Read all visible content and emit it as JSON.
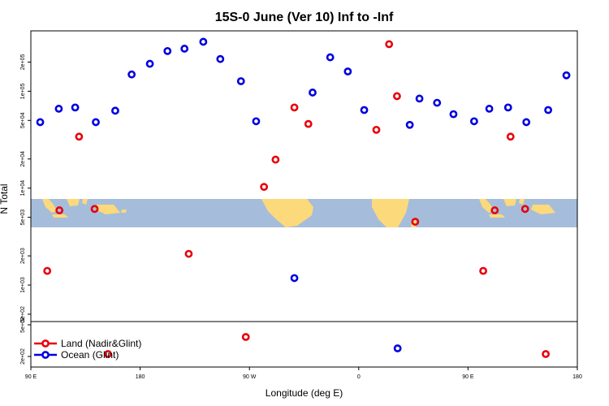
{
  "chart_data": {
    "type": "scatter",
    "title": "15S-0 June (Ver 10)   Inf to -Inf",
    "xlabel": "Longitude (deg E)",
    "ylabel": "N Total",
    "x_tick_labels": [
      "90 E",
      "180",
      "90 W",
      "0",
      "90 E",
      "180"
    ],
    "x_tick_values": [
      90,
      180,
      270,
      360,
      450,
      540
    ],
    "xlim": [
      90,
      540
    ],
    "y_tick_labels": [
      "2e+05",
      "1e+05",
      "5e+04",
      "2e+04",
      "1e+04",
      "5e+03",
      "2e+03",
      "1e+03",
      "5e+02"
    ],
    "y_tick_values": [
      200000,
      100000,
      50000,
      20000,
      10000,
      5000,
      2000,
      1000,
      500
    ],
    "ylim": [
      420,
      420000
    ],
    "y_scale": "log",
    "inset_y_tick_labels": [
      "5e+02",
      "2e+02"
    ],
    "map_band_latitude": "15S-0",
    "legend": {
      "placement": "bottom-left",
      "entries": [
        {
          "label": "Land (Nadir&Glint)",
          "color": "#e8000b"
        },
        {
          "label": "Ocean (Glint)",
          "color": "#0000e0"
        }
      ]
    },
    "series": [
      {
        "name": "Land (Nadir&Glint)",
        "color": "#e8000b",
        "points": [
          {
            "x": 103.5,
            "y": 1400
          },
          {
            "x": 113.5,
            "y": 5900
          },
          {
            "x": 129.7,
            "y": 34000
          },
          {
            "x": 142.5,
            "y": 6100
          },
          {
            "x": 153.5,
            "panel": "low"
          },
          {
            "x": 220.0,
            "y": 2100
          },
          {
            "x": 267.0,
            "panel": "low"
          },
          {
            "x": 282.0,
            "y": 10300
          },
          {
            "x": 291.5,
            "y": 19700
          },
          {
            "x": 307.0,
            "y": 68000
          },
          {
            "x": 318.5,
            "y": 46000
          },
          {
            "x": 374.5,
            "y": 40000
          },
          {
            "x": 385.0,
            "y": 306000
          },
          {
            "x": 391.5,
            "y": 89000
          },
          {
            "x": 406.5,
            "y": 4500
          },
          {
            "x": 462.5,
            "y": 1400
          },
          {
            "x": 472.0,
            "y": 5900
          },
          {
            "x": 485.0,
            "y": 34000
          },
          {
            "x": 497.0,
            "y": 6100
          },
          {
            "x": 514.0,
            "panel": "low"
          }
        ]
      },
      {
        "name": "Ocean (Glint)",
        "color": "#0000e0",
        "points": [
          {
            "x": 97.7,
            "y": 48000
          },
          {
            "x": 113.0,
            "y": 66000
          },
          {
            "x": 126.5,
            "y": 68000
          },
          {
            "x": 143.5,
            "y": 48000
          },
          {
            "x": 159.5,
            "y": 63000
          },
          {
            "x": 173.0,
            "y": 149000
          },
          {
            "x": 188.0,
            "y": 192000
          },
          {
            "x": 202.5,
            "y": 260000
          },
          {
            "x": 216.5,
            "y": 275000
          },
          {
            "x": 232.0,
            "y": 324000
          },
          {
            "x": 246.0,
            "y": 215000
          },
          {
            "x": 263.0,
            "y": 127000
          },
          {
            "x": 275.5,
            "y": 49000
          },
          {
            "x": 307.0,
            "y": 1180
          },
          {
            "x": 322.0,
            "y": 97000
          },
          {
            "x": 336.5,
            "y": 224000
          },
          {
            "x": 351.0,
            "y": 160000
          },
          {
            "x": 364.5,
            "y": 64000
          },
          {
            "x": 392.0,
            "panel": "low"
          },
          {
            "x": 402.0,
            "y": 45000
          },
          {
            "x": 410.0,
            "y": 84000
          },
          {
            "x": 424.5,
            "y": 76000
          },
          {
            "x": 438.0,
            "y": 58000
          },
          {
            "x": 455.0,
            "y": 49000
          },
          {
            "x": 467.5,
            "y": 66000
          },
          {
            "x": 483.0,
            "y": 68000
          },
          {
            "x": 498.0,
            "y": 48000
          },
          {
            "x": 516.0,
            "y": 64000
          },
          {
            "x": 531.0,
            "y": 146000
          }
        ]
      }
    ]
  }
}
